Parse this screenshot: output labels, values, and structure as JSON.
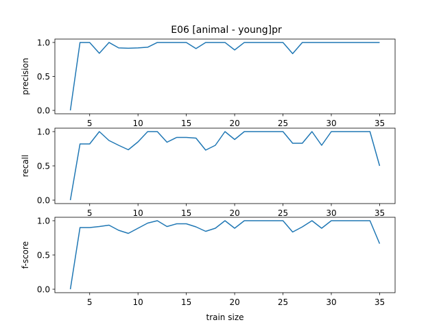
{
  "figure": {
    "title": "E06 [animal - young]pr"
  },
  "chart_data": [
    {
      "type": "line",
      "ylabel": "precision",
      "xlabel": "",
      "xlim": [
        1.4,
        36.6
      ],
      "ylim": [
        -0.05,
        1.05
      ],
      "xticks": [
        5,
        10,
        15,
        20,
        25,
        30,
        35
      ],
      "yticks": [
        0.0,
        0.5,
        1.0
      ],
      "grid": false,
      "color": "#1f77b4",
      "x": [
        3,
        4,
        5,
        6,
        7,
        8,
        9,
        10,
        11,
        12,
        13,
        14,
        15,
        16,
        17,
        18,
        19,
        20,
        21,
        22,
        23,
        24,
        25,
        26,
        27,
        28,
        29,
        30,
        31,
        32,
        33,
        34,
        35
      ],
      "y": [
        0.0,
        1.0,
        1.0,
        0.84,
        1.0,
        0.92,
        0.915,
        0.92,
        0.93,
        1.0,
        1.0,
        1.0,
        1.0,
        0.91,
        1.0,
        1.0,
        1.0,
        0.89,
        1.0,
        1.0,
        1.0,
        1.0,
        1.0,
        0.835,
        1.0,
        1.0,
        1.0,
        1.0,
        1.0,
        1.0,
        1.0,
        1.0,
        1.0
      ]
    },
    {
      "type": "line",
      "ylabel": "recall",
      "xlabel": "",
      "xlim": [
        1.4,
        36.6
      ],
      "ylim": [
        -0.05,
        1.05
      ],
      "xticks": [
        5,
        10,
        15,
        20,
        25,
        30,
        35
      ],
      "yticks": [
        0.0,
        0.5,
        1.0
      ],
      "grid": false,
      "color": "#1f77b4",
      "x": [
        3,
        4,
        5,
        6,
        7,
        8,
        9,
        10,
        11,
        12,
        13,
        14,
        15,
        16,
        17,
        18,
        19,
        20,
        21,
        22,
        23,
        24,
        25,
        26,
        27,
        28,
        29,
        30,
        31,
        32,
        33,
        34,
        35
      ],
      "y": [
        0.0,
        0.82,
        0.82,
        1.0,
        0.87,
        0.8,
        0.735,
        0.85,
        1.0,
        1.0,
        0.845,
        0.915,
        0.915,
        0.905,
        0.73,
        0.8,
        1.0,
        0.885,
        1.0,
        1.0,
        1.0,
        1.0,
        1.0,
        0.83,
        0.83,
        1.0,
        0.8,
        1.0,
        1.0,
        1.0,
        1.0,
        1.0,
        0.5
      ]
    },
    {
      "type": "line",
      "ylabel": "f-score",
      "xlabel": "train size",
      "xlim": [
        1.4,
        36.6
      ],
      "ylim": [
        -0.05,
        1.05
      ],
      "xticks": [
        5,
        10,
        15,
        20,
        25,
        30,
        35
      ],
      "yticks": [
        0.0,
        0.5,
        1.0
      ],
      "grid": false,
      "color": "#1f77b4",
      "x": [
        3,
        4,
        5,
        6,
        7,
        8,
        9,
        10,
        11,
        12,
        13,
        14,
        15,
        16,
        17,
        18,
        19,
        20,
        21,
        22,
        23,
        24,
        25,
        26,
        27,
        28,
        29,
        30,
        31,
        32,
        33,
        34,
        35
      ],
      "y": [
        0.0,
        0.9,
        0.9,
        0.915,
        0.935,
        0.86,
        0.815,
        0.89,
        0.965,
        1.0,
        0.915,
        0.955,
        0.955,
        0.91,
        0.845,
        0.89,
        1.0,
        0.89,
        1.0,
        1.0,
        1.0,
        1.0,
        1.0,
        0.835,
        0.91,
        1.0,
        0.89,
        1.0,
        1.0,
        1.0,
        1.0,
        1.0,
        0.665
      ]
    }
  ]
}
